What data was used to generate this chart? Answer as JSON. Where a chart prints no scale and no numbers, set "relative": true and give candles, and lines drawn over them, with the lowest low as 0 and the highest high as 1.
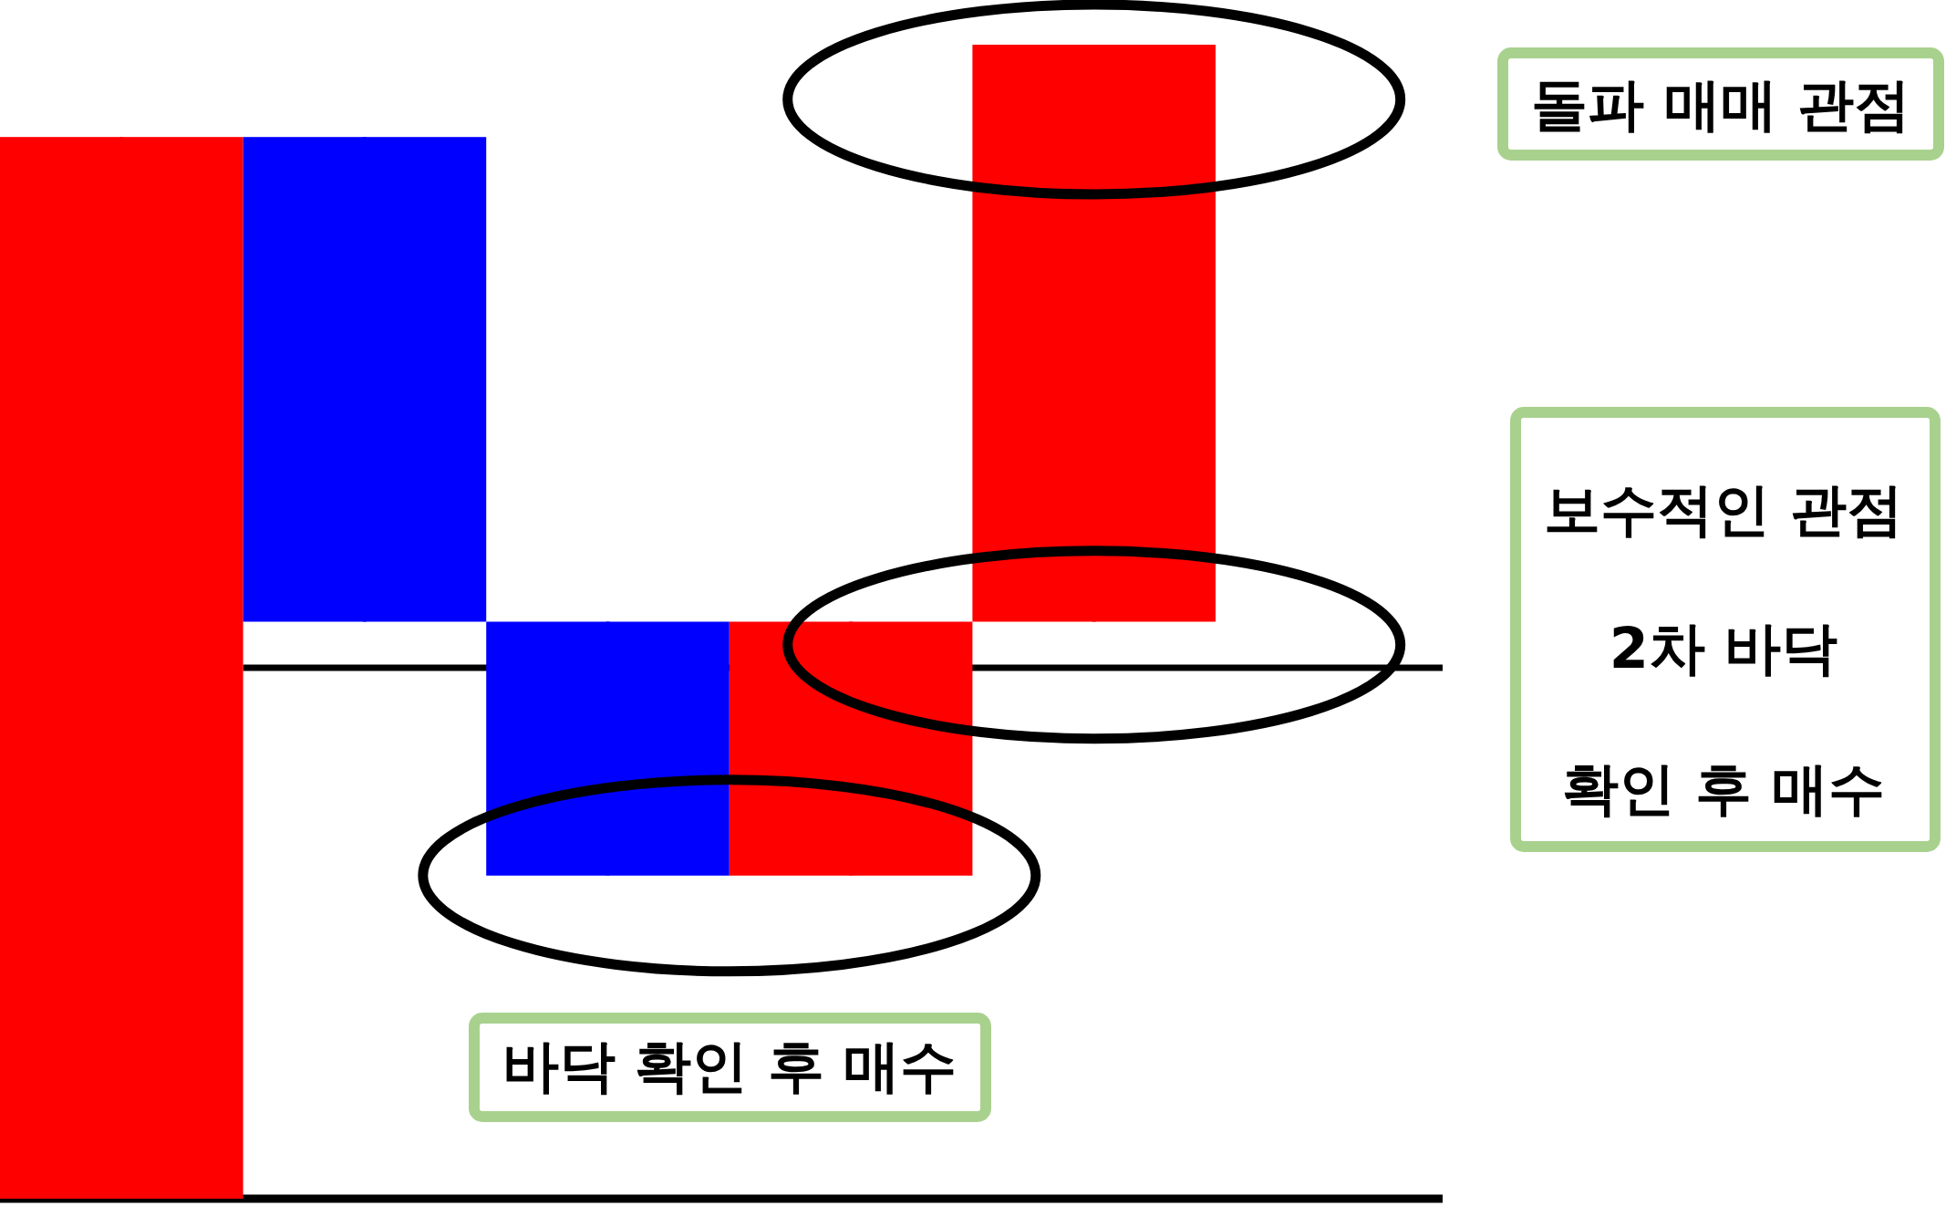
{
  "chart_data": {
    "type": "candlestick",
    "categories": [
      null,
      null,
      null,
      null,
      null
    ],
    "ohlc": [
      [
        0,
        0.92,
        0,
        0.92
      ],
      [
        0.92,
        0.92,
        0.5,
        0.5
      ],
      [
        0.5,
        0.5,
        0.28,
        0.28
      ],
      [
        0.28,
        0.5,
        0.28,
        0.5
      ],
      [
        0.5,
        1,
        0.5,
        1
      ]
    ],
    "colors": [
      "#ff0000",
      "#0000ff",
      "#0000ff",
      "#ff0000",
      "#ff0000"
    ],
    "relative": true,
    "ref_lines": [
      {
        "axis": "y",
        "value": 0.46,
        "color": "#000000"
      }
    ],
    "annotations": [
      "돌파 매매 관점",
      "보수적인 관점",
      "2차 바닥",
      "확인 후 매수",
      "바닥 확인 후 매수"
    ]
  }
}
